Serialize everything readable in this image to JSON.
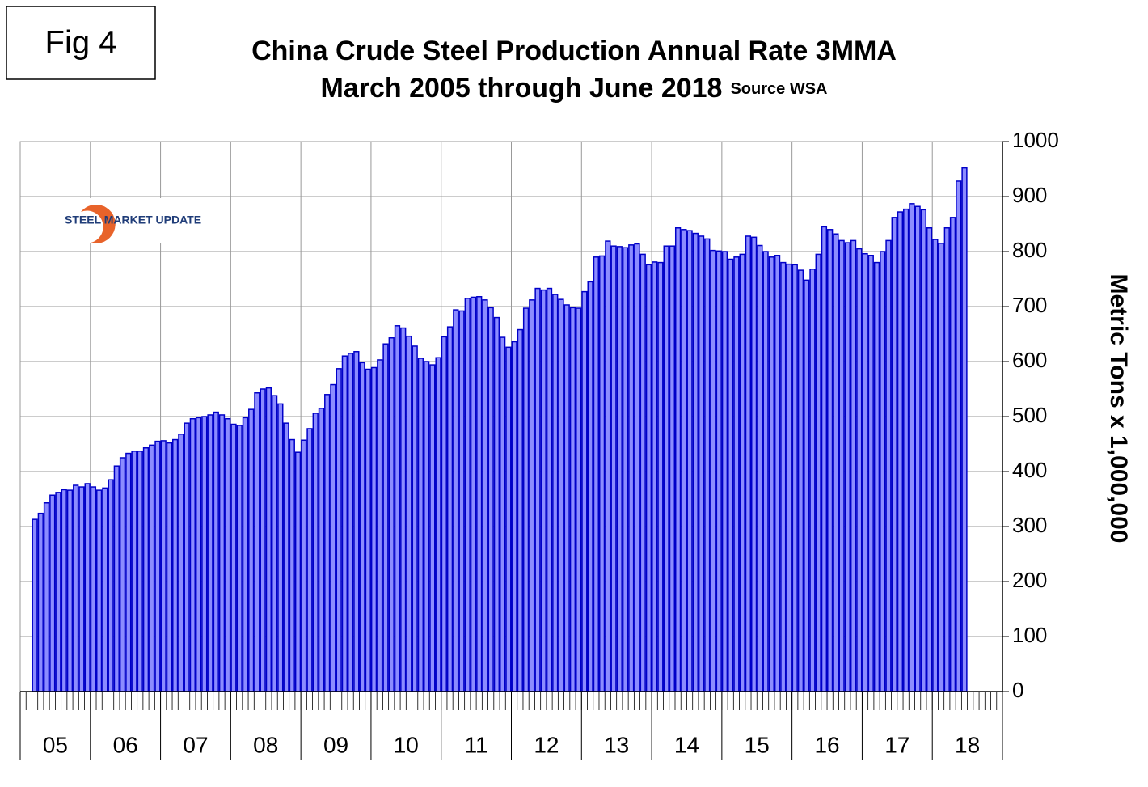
{
  "label": "Fig 4",
  "logo": "STEEL MARKET UPDATE",
  "chart_data": {
    "type": "bar",
    "title": "China Crude Steel Production Annual Rate 3MMA",
    "subtitle": "March 2005 through June 2018",
    "source": "Source WSA",
    "y_label": "Metric Tons x 1,000,000",
    "color": "#8c8cff",
    "edge_color": "#0000c8",
    "grid": true,
    "ylim": [
      0,
      1000
    ],
    "yticks": [
      0,
      100,
      200,
      300,
      400,
      500,
      600,
      700,
      800,
      900,
      1000
    ],
    "year_labels": [
      "05",
      "06",
      "07",
      "08",
      "09",
      "10",
      "11",
      "12",
      "13",
      "14",
      "15",
      "16",
      "17",
      "18"
    ],
    "categories": [
      null,
      null,
      null,
      null,
      null,
      null,
      null,
      null,
      null,
      null,
      null,
      null,
      null,
      null,
      null,
      null,
      null,
      null,
      null,
      null,
      null,
      null,
      null,
      null,
      null,
      null,
      null,
      null,
      null,
      null,
      null,
      null,
      null,
      null,
      null,
      null,
      null,
      null,
      null,
      null,
      null,
      null,
      null,
      null,
      null,
      null,
      null,
      null,
      null,
      null,
      null,
      null,
      null,
      null,
      null,
      null,
      null,
      null,
      null,
      null,
      null,
      null,
      null,
      null,
      null,
      null,
      null,
      null,
      null,
      null,
      null,
      null,
      null,
      null,
      null,
      null,
      null,
      null,
      null,
      null,
      null,
      null,
      null,
      null,
      null,
      null,
      null,
      null,
      null,
      null,
      null,
      null,
      null,
      null,
      null,
      null,
      null,
      null,
      null,
      null,
      null,
      null,
      null,
      null,
      null,
      null,
      null,
      null,
      null,
      null,
      null,
      null,
      null,
      null,
      null,
      null,
      null,
      null,
      null,
      null,
      null,
      null,
      null,
      null,
      null,
      null,
      null,
      null,
      null,
      null,
      null,
      null,
      null,
      null,
      null,
      null,
      null,
      null,
      null,
      null,
      null,
      null,
      null,
      null,
      null,
      null,
      null,
      null,
      null,
      null,
      null,
      null,
      null,
      null,
      null,
      null,
      null,
      null,
      null,
      null,
      null,
      null,
      null,
      null,
      null,
      null,
      null,
      null
    ],
    "values": [
      null,
      null,
      313,
      324,
      343,
      357,
      362,
      367,
      366,
      375,
      372,
      378,
      372,
      366,
      370,
      385,
      410,
      425,
      433,
      437,
      437,
      443,
      448,
      455,
      456,
      452,
      458,
      468,
      488,
      496,
      498,
      500,
      503,
      508,
      503,
      496,
      486,
      484,
      498,
      513,
      543,
      550,
      552,
      538,
      523,
      488,
      458,
      435,
      457,
      478,
      506,
      515,
      540,
      558,
      587,
      610,
      615,
      618,
      598,
      586,
      589,
      603,
      632,
      643,
      665,
      661,
      646,
      628,
      606,
      600,
      594,
      607,
      645,
      663,
      694,
      692,
      715,
      717,
      718,
      712,
      698,
      680,
      644,
      626,
      636,
      658,
      697,
      712,
      733,
      730,
      733,
      722,
      713,
      703,
      698,
      697,
      727,
      745,
      790,
      792,
      819,
      810,
      809,
      807,
      812,
      814,
      795,
      776,
      781,
      780,
      810,
      810,
      843,
      840,
      838,
      833,
      828,
      823,
      802,
      801,
      800,
      786,
      790,
      795,
      828,
      826,
      811,
      800,
      790,
      793,
      780,
      777,
      776,
      766,
      748,
      768,
      795,
      845,
      840,
      832,
      820,
      816,
      820,
      805,
      796,
      793,
      780,
      800,
      820,
      862,
      872,
      877,
      887,
      882,
      876,
      843,
      822,
      815,
      843,
      862,
      928,
      952,
      null,
      null,
      null,
      null,
      null,
      null
    ]
  }
}
